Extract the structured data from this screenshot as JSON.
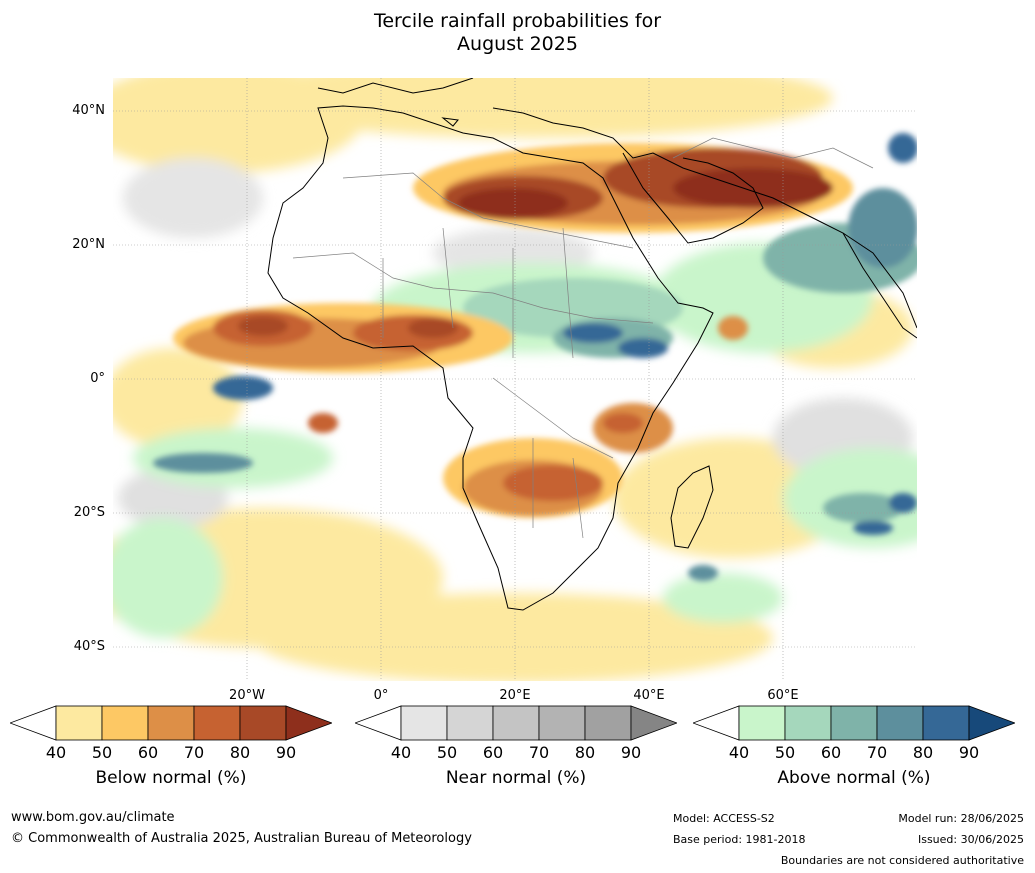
{
  "title": {
    "line1": "Tercile rainfall probabilities for",
    "line2": "August 2025"
  },
  "map": {
    "lat_labels": [
      "40°N",
      "20°N",
      "0°",
      "20°S",
      "40°S"
    ],
    "lon_labels": [
      "20°W",
      "0°",
      "20°E",
      "40°E",
      "60°E"
    ],
    "bounds": {
      "lon_min": -30,
      "lon_max": 80,
      "lat_min": -45,
      "lat_max": 45
    }
  },
  "legend": {
    "below": {
      "title": "Below normal (%)",
      "ticks": [
        "40",
        "50",
        "60",
        "70",
        "80",
        "90"
      ],
      "colors": [
        "#ffffff",
        "#fde9a0",
        "#fdc864",
        "#dd8f47",
        "#c66231",
        "#a84927",
        "#8e2f1c"
      ]
    },
    "near": {
      "title": "Near normal (%)",
      "ticks": [
        "40",
        "50",
        "60",
        "70",
        "80",
        "90"
      ],
      "colors": [
        "#ffffff",
        "#e5e5e5",
        "#d5d5d5",
        "#c4c4c4",
        "#b3b3b3",
        "#a1a1a1",
        "#858585"
      ]
    },
    "above": {
      "title": "Above normal (%)",
      "ticks": [
        "40",
        "50",
        "60",
        "70",
        "80",
        "90"
      ],
      "colors": [
        "#ffffff",
        "#c9f5cb",
        "#a5d7bc",
        "#7fb3a9",
        "#5d8f9d",
        "#356896",
        "#17497a"
      ]
    }
  },
  "footer": {
    "website": "www.bom.gov.au/climate",
    "copyright": "© Commonwealth of Australia 2025, Australian Bureau of Meteorology",
    "model": "Model: ACCESS-S2",
    "base_period": "Base period: 1981-2018",
    "model_run": "Model run: 28/06/2025",
    "issued": "Issued: 30/06/2025",
    "disclaimer": "Boundaries are not considered authoritative"
  }
}
